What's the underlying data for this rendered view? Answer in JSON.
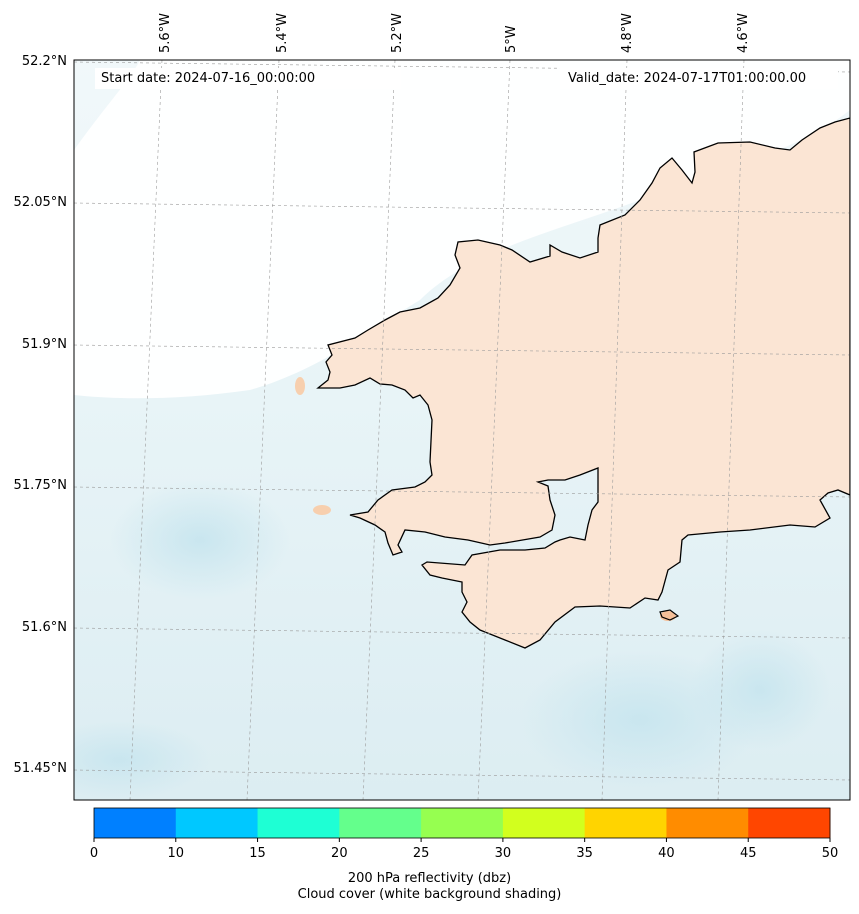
{
  "header": {
    "start_date": "Start date: 2024-07-16_00:00:00",
    "valid_date": "Valid_date: 2024-07-17T01:00:00.00"
  },
  "lon_labels": [
    "5.6°W",
    "5.4°W",
    "5.2°W",
    "5°W",
    "4.8°W",
    "4.6°W"
  ],
  "lat_labels": [
    "52.2°N",
    "52.05°N",
    "51.9°N",
    "51.75°N",
    "51.6°N",
    "51.45°N"
  ],
  "colorbar": {
    "ticks": [
      "0",
      "10",
      "15",
      "20",
      "25",
      "30",
      "35",
      "40",
      "45",
      "50"
    ],
    "colors": [
      "#0080ff",
      "#00c8ff",
      "#1effd4",
      "#64ff8c",
      "#96ff50",
      "#d2ff1e",
      "#ffd400",
      "#ff8c00",
      "#ff4600"
    ],
    "label_line1": "200 hPa reflectivity (dbz)",
    "label_line2": "Cloud cover (white background shading)"
  },
  "colors": {
    "land_warm": "#f7d3b4",
    "sea_cloud": "#e3f2f6",
    "coastline": "#000000"
  }
}
